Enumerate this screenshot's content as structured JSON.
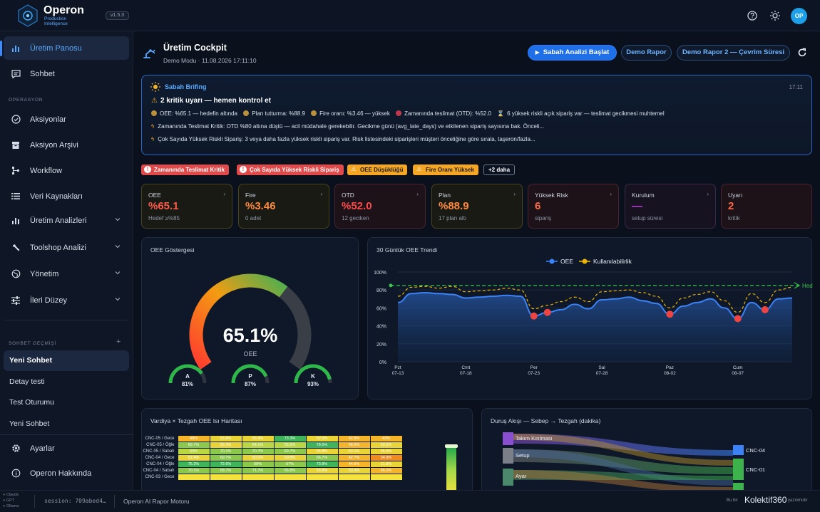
{
  "app": {
    "brand": "Operon",
    "brand_sub1": "Production",
    "brand_sub2": "Intelligence",
    "version": "v1.5.3",
    "avatar": "OP"
  },
  "topbar_icons": [
    "help-icon",
    "theme-sun-icon"
  ],
  "sidebar": {
    "primary": [
      {
        "label": "Üretim Panosu",
        "icon": "bar-chart-icon",
        "active": true
      },
      {
        "label": "Sohbet",
        "icon": "chat-icon"
      }
    ],
    "section_label": "OPERASYON",
    "items": [
      {
        "label": "Aksiyonlar",
        "icon": "check-circle-icon"
      },
      {
        "label": "Aksiyon Arşivi",
        "icon": "archive-icon"
      },
      {
        "label": "Workflow",
        "icon": "workflow-icon"
      },
      {
        "label": "Veri Kaynakları",
        "icon": "list-icon"
      },
      {
        "label": "Üretim Analizleri",
        "icon": "bar-chart-icon",
        "expandable": true
      },
      {
        "label": "Toolshop Analizi",
        "icon": "wrench-icon",
        "expandable": true
      },
      {
        "label": "Yönetim",
        "icon": "globe-icon",
        "expandable": true
      },
      {
        "label": "İleri Düzey",
        "icon": "sliders-icon",
        "expandable": true
      }
    ],
    "history_label": "SOHBET GEÇMİŞİ",
    "history": [
      {
        "label": "Yeni Sohbet",
        "active": true
      },
      {
        "label": "Detay testi"
      },
      {
        "label": "Test Oturumu"
      },
      {
        "label": "Yeni Sohbet"
      }
    ],
    "bottom": [
      {
        "label": "Ayarlar",
        "icon": "gear-icon"
      },
      {
        "label": "Operon Hakkında",
        "icon": "info-icon"
      }
    ]
  },
  "header": {
    "title": "Üretim Cockpit",
    "subtitle": "Demo Modu · 11.08.2026 17:11:10",
    "btn_primary": "Sabah Analizi Başlat",
    "btn_demo1": "Demo Rapor",
    "btn_demo2": "Demo Rapor 2 — Çevrim Süresi"
  },
  "briefing": {
    "title": "Sabah Brifing",
    "time": "17:11",
    "headline": "2 kritik uyarı — hemen kontrol et",
    "status": [
      {
        "text": "OEE: %65.1 — hedefin altında",
        "color": "#b8913a"
      },
      {
        "text": "Plan tutturma: %88.9",
        "color": "#b8913a"
      },
      {
        "text": "Fire oranı: %3.46 — yüksek",
        "color": "#b8913a"
      },
      {
        "text": "Zamanında teslimat (OTD): %52.0",
        "color": "#c0394b"
      }
    ],
    "risk_note": "6 yüksek riskli açık sipariş var — teslimat gecikmesi muhtemel",
    "line2": "Zamanında Teslimat Kritik: OTD %80 altına düştü — acil müdahale gerekebilir. Gecikme günü (avg_late_days) ve etkilenen sipariş sayısına bak. Önceli...",
    "line3": "Çok Sayıda Yüksek Riskli Sipariş: 3 veya daha fazla yüksek riskli sipariş var. Risk listesindeki siparişleri müşteri önceliğine göre sırala, taşeron/fazla..."
  },
  "alerts": [
    {
      "label": "Zamanında Teslimat Kritik",
      "level": "critical"
    },
    {
      "label": "Çok Sayıda Yüksek Riskli Sipariş",
      "level": "critical"
    },
    {
      "label": "OEE Düşüklüğü",
      "level": "warning"
    },
    {
      "label": "Fire Oranı Yüksek",
      "level": "warning"
    },
    {
      "label": "+2 daha",
      "level": "more"
    }
  ],
  "kpis": [
    {
      "label": "OEE",
      "value": "%65.1",
      "sub": "Hedef ≥%85",
      "color": "#ff5a4a",
      "tone": "amber"
    },
    {
      "label": "Fire",
      "value": "%3.46",
      "sub": "0 adet",
      "color": "#ff8a3d",
      "tone": "amber"
    },
    {
      "label": "OTD",
      "value": "%52.0",
      "sub": "12 geciken",
      "color": "#ff4a4a",
      "tone": "red"
    },
    {
      "label": "Plan",
      "value": "%88.9",
      "sub": "17 plan altı",
      "color": "#ff8a3d",
      "tone": "amber"
    },
    {
      "label": "Yüksek Risk",
      "value": "6",
      "sub": "sipariş",
      "color": "#ff6a4a",
      "tone": "red"
    },
    {
      "label": "Kurulum",
      "value": "—",
      "sub": "setup süresi",
      "color": "#c040e0",
      "tone": "purple"
    },
    {
      "label": "Uyarı",
      "value": "2",
      "sub": "kritik",
      "color": "#ff6a4a",
      "tone": "red"
    }
  ],
  "gauge": {
    "title": "OEE Göstergesi",
    "value_text": "65.1%",
    "label": "OEE",
    "value": 65.1,
    "mini": [
      {
        "label": "A",
        "value_text": "81%",
        "value": 81
      },
      {
        "label": "P",
        "value_text": "87%",
        "value": 87
      },
      {
        "label": "K",
        "value_text": "93%",
        "value": 93
      }
    ]
  },
  "chart_data": {
    "type": "line",
    "title": "30 Günlük OEE Trendi",
    "legend": [
      "OEE",
      "Kullanılabilirlik"
    ],
    "legend_position": "top-center",
    "target_label": "Hedef",
    "target": 85,
    "ylim": [
      0,
      100
    ],
    "yticks": [
      "0%",
      "20%",
      "40%",
      "60%",
      "80%",
      "100%"
    ],
    "xticks": [
      {
        "day": "Pzt",
        "date": "07-13",
        "i": 0
      },
      {
        "day": "Cmt",
        "date": "07-18",
        "i": 5
      },
      {
        "day": "Per",
        "date": "07-23",
        "i": 10
      },
      {
        "day": "Sal",
        "date": "07-28",
        "i": 15
      },
      {
        "day": "Paz",
        "date": "08-02",
        "i": 20
      },
      {
        "day": "Cum",
        "date": "08-07",
        "i": 25
      }
    ],
    "series": [
      {
        "name": "OEE",
        "color": "#3b82f6",
        "values": [
          66,
          76,
          77,
          76,
          75,
          71,
          72,
          73,
          74,
          73,
          51,
          55,
          58,
          64,
          59,
          69,
          70,
          72,
          68,
          65,
          53,
          62,
          66,
          70,
          60,
          48,
          66,
          58,
          70,
          71
        ]
      },
      {
        "name": "Kullanılabilirlik",
        "color": "#eab308",
        "values": [
          73,
          83,
          84,
          82,
          84,
          78,
          79,
          80,
          82,
          80,
          59,
          63,
          67,
          72,
          67,
          78,
          79,
          80,
          77,
          73,
          60,
          71,
          75,
          78,
          68,
          55,
          76,
          66,
          80,
          83
        ]
      }
    ],
    "alerts_at": [
      10,
      11,
      20,
      25,
      27
    ]
  },
  "heatmap": {
    "title": "Vardiya × Tezgah OEE Isı Haritası",
    "rows": [
      {
        "label": "CNC-05 / Gece",
        "cells": [
          "48%",
          "53.8%",
          "56.9%",
          "73.3%",
          "52.0%",
          "42.8%",
          "43%"
        ]
      },
      {
        "label": "CNC-05 / Öğle",
        "cells": [
          "69.7%",
          "56.3%",
          "64.1%",
          "65.5%",
          "78.5%",
          "48.9%",
          "50.5%"
        ]
      },
      {
        "label": "CNC-05 / Sabah",
        "cells": [
          "63%",
          "70.1%",
          "70.7%",
          "69.7%",
          "55.8%",
          "53.1%",
          "55.9%"
        ]
      },
      {
        "label": "CNC-04 / Gece",
        "cells": [
          "52.4%",
          "69.7%",
          "50.0%",
          "50.8%",
          "66.7%",
          "42.7%",
          "34.9%"
        ]
      },
      {
        "label": "CNC-04 / Öğle",
        "cells": [
          "75.2%",
          "72.6%",
          "69%",
          "67%",
          "73.8%",
          "44.6%",
          "51.8%"
        ]
      },
      {
        "label": "CNC-04 / Sabah",
        "cells": [
          "70.1%",
          "68.7%",
          "71.7%",
          "66.8%",
          "53.8%",
          "53.3%",
          "46.2%"
        ]
      },
      {
        "label": "CNC-03 / Gece",
        "cells": [
          "",
          "",
          "",
          "",
          "",
          "",
          ""
        ]
      }
    ]
  },
  "sankey": {
    "title": "Duruş Akışı — Sebep → Tezgah (dakika)",
    "sources": [
      "Takım Kırılması",
      "Setup",
      "Ayar"
    ],
    "targets": [
      "CNC-04",
      "CNC-01"
    ]
  },
  "footer": {
    "models": [
      "Claude",
      "GPT",
      "Ollama"
    ],
    "session": "session: 709abed4…",
    "engine": "Operon AI Rapor Motoru",
    "credit_prefix": "Bu bir",
    "credit_brand": "Kolektif360",
    "credit_suffix": "yazılımıdır"
  }
}
